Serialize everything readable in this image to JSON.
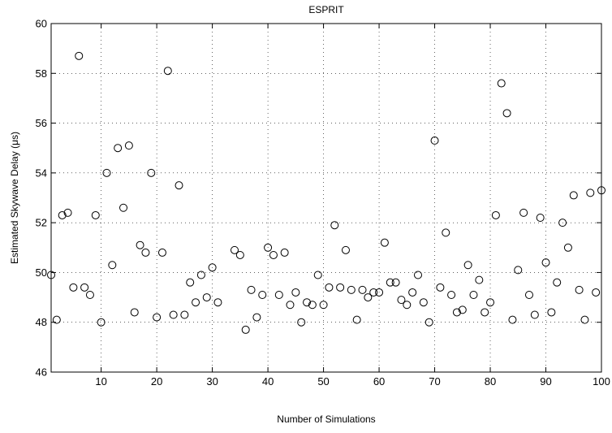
{
  "chart_data": {
    "type": "scatter",
    "title": "ESPRIT",
    "xlabel": "Number of Simulations",
    "ylabel": "Estimated Skywave Delay (μs)",
    "xlim": [
      1,
      100
    ],
    "ylim": [
      46,
      60
    ],
    "xticks": [
      10,
      20,
      30,
      40,
      50,
      60,
      70,
      80,
      90,
      100
    ],
    "yticks": [
      46,
      48,
      50,
      52,
      54,
      56,
      58,
      60
    ],
    "grid": true,
    "marker": "open-circle",
    "marker_color": "#000000",
    "series": [
      {
        "x": [
          1,
          2,
          3,
          4,
          5,
          6,
          7,
          8,
          9,
          10,
          11,
          12,
          13,
          14,
          15,
          16,
          17,
          18,
          19,
          20,
          21,
          22,
          23,
          24,
          25,
          26,
          27,
          28,
          29,
          30,
          31,
          34,
          35,
          36,
          37,
          38,
          39,
          40,
          41,
          42,
          43,
          44,
          45,
          46,
          47,
          48,
          49,
          50,
          51,
          52,
          53,
          54,
          55,
          56,
          57,
          58,
          59,
          60,
          61,
          62,
          63,
          64,
          65,
          66,
          67,
          68,
          69,
          70,
          71,
          72,
          73,
          74,
          75,
          76,
          77,
          78,
          79,
          80,
          81,
          82,
          83,
          84,
          85,
          86,
          87,
          88,
          89,
          90,
          91,
          92,
          93,
          94,
          95,
          96,
          97,
          98,
          99,
          100
        ],
        "y": [
          49.9,
          48.1,
          52.3,
          52.4,
          49.4,
          58.7,
          49.4,
          49.1,
          52.3,
          48.0,
          54.0,
          50.3,
          55.0,
          52.6,
          55.1,
          48.4,
          51.1,
          50.8,
          54.0,
          48.2,
          50.8,
          58.1,
          48.3,
          53.5,
          48.3,
          49.6,
          48.8,
          49.9,
          49.0,
          50.2,
          48.8,
          50.9,
          50.7,
          47.7,
          49.3,
          48.2,
          49.1,
          51.0,
          50.7,
          49.1,
          50.8,
          48.7,
          49.2,
          48.0,
          48.8,
          48.7,
          49.9,
          48.7,
          49.4,
          51.9,
          49.4,
          50.9,
          49.3,
          48.1,
          49.3,
          49.0,
          49.2,
          49.2,
          51.2,
          49.6,
          49.6,
          48.9,
          48.7,
          49.2,
          49.9,
          48.8,
          48.0,
          55.3,
          49.4,
          51.6,
          49.1,
          48.4,
          48.5,
          50.3,
          49.1,
          49.7,
          48.4,
          48.8,
          52.3,
          57.6,
          56.4,
          48.1,
          50.1,
          52.4,
          49.1,
          48.3,
          52.2,
          50.4,
          48.4,
          49.6,
          52.0,
          51.0,
          53.1,
          49.3,
          48.1,
          53.2,
          49.2,
          53.3
        ]
      }
    ]
  }
}
